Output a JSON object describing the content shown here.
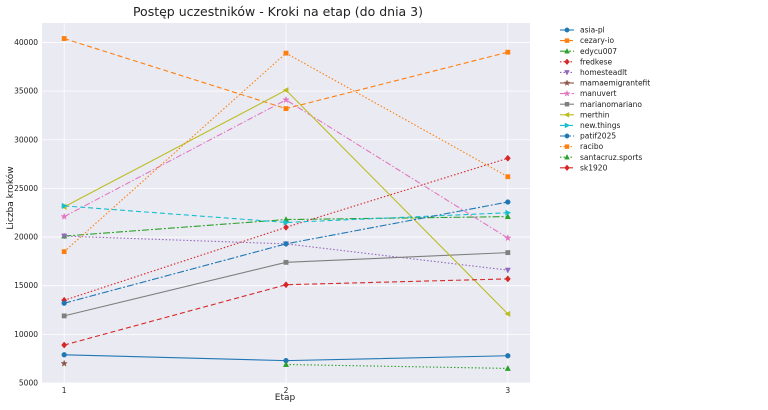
{
  "chart_data": {
    "type": "line",
    "title": "Postęp uczestników - Kroki na etap (do dnia 3)",
    "xlabel": "Etap",
    "ylabel": "Liczba kroków",
    "x": [
      1,
      2,
      3
    ],
    "x_ticks": [
      "1",
      "2",
      "3"
    ],
    "xlim": [
      0.9,
      3.1
    ],
    "ylim": [
      5000,
      42000
    ],
    "y_ticks": [
      5000,
      10000,
      15000,
      20000,
      25000,
      30000,
      35000,
      40000
    ],
    "grid": true,
    "legend_position": "outside-right",
    "series": [
      {
        "name": "asia-pl",
        "values": [
          7900,
          7300,
          7800
        ],
        "color": "#1f77b4",
        "dash": "",
        "marker": "circle"
      },
      {
        "name": "cezary-io",
        "values": [
          40400,
          33200,
          39000
        ],
        "color": "#ff7f0e",
        "dash": "5,3",
        "marker": "square"
      },
      {
        "name": "edycu007",
        "values": [
          20100,
          21800,
          22100
        ],
        "color": "#2ca02c",
        "dash": "7,2,2,2",
        "marker": "triangle-up"
      },
      {
        "name": "fredkese",
        "values": [
          13500,
          21000,
          28100
        ],
        "color": "#d62728",
        "dash": "1.5,2",
        "marker": "diamond"
      },
      {
        "name": "homesteadlt",
        "values": [
          20100,
          19300,
          16600
        ],
        "color": "#9467bd",
        "dash": "1.5,2",
        "marker": "triangle-down"
      },
      {
        "name": "mamaemigrantefit",
        "values": [
          7000,
          null,
          null
        ],
        "color": "#8c564b",
        "dash": "",
        "marker": "star"
      },
      {
        "name": "manuvert",
        "values": [
          22100,
          34100,
          19900
        ],
        "color": "#e377c2",
        "dash": "6,2,1.5,2",
        "marker": "star"
      },
      {
        "name": "marianomariano",
        "values": [
          11900,
          17400,
          18400
        ],
        "color": "#7f7f7f",
        "dash": "",
        "marker": "square"
      },
      {
        "name": "merthin",
        "values": [
          23100,
          35100,
          12100
        ],
        "color": "#bcbd22",
        "dash": "",
        "marker": "triangle-left"
      },
      {
        "name": "new.things",
        "values": [
          23200,
          21500,
          22500
        ],
        "color": "#17becf",
        "dash": "5,3",
        "marker": "triangle-right"
      },
      {
        "name": "patif2025",
        "values": [
          13200,
          19300,
          23600
        ],
        "color": "#1f77b4",
        "dash": "7,2,2,2",
        "marker": "circle"
      },
      {
        "name": "racibo",
        "values": [
          18500,
          38900,
          26200
        ],
        "color": "#ff7f0e",
        "dash": "1.5,2",
        "marker": "square"
      },
      {
        "name": "santacruz.sports",
        "values": [
          null,
          6900,
          6500
        ],
        "color": "#2ca02c",
        "dash": "1.5,2",
        "marker": "triangle-up"
      },
      {
        "name": "sk1920",
        "values": [
          8900,
          15100,
          15700
        ],
        "color": "#d62728",
        "dash": "5,3",
        "marker": "diamond"
      }
    ]
  }
}
